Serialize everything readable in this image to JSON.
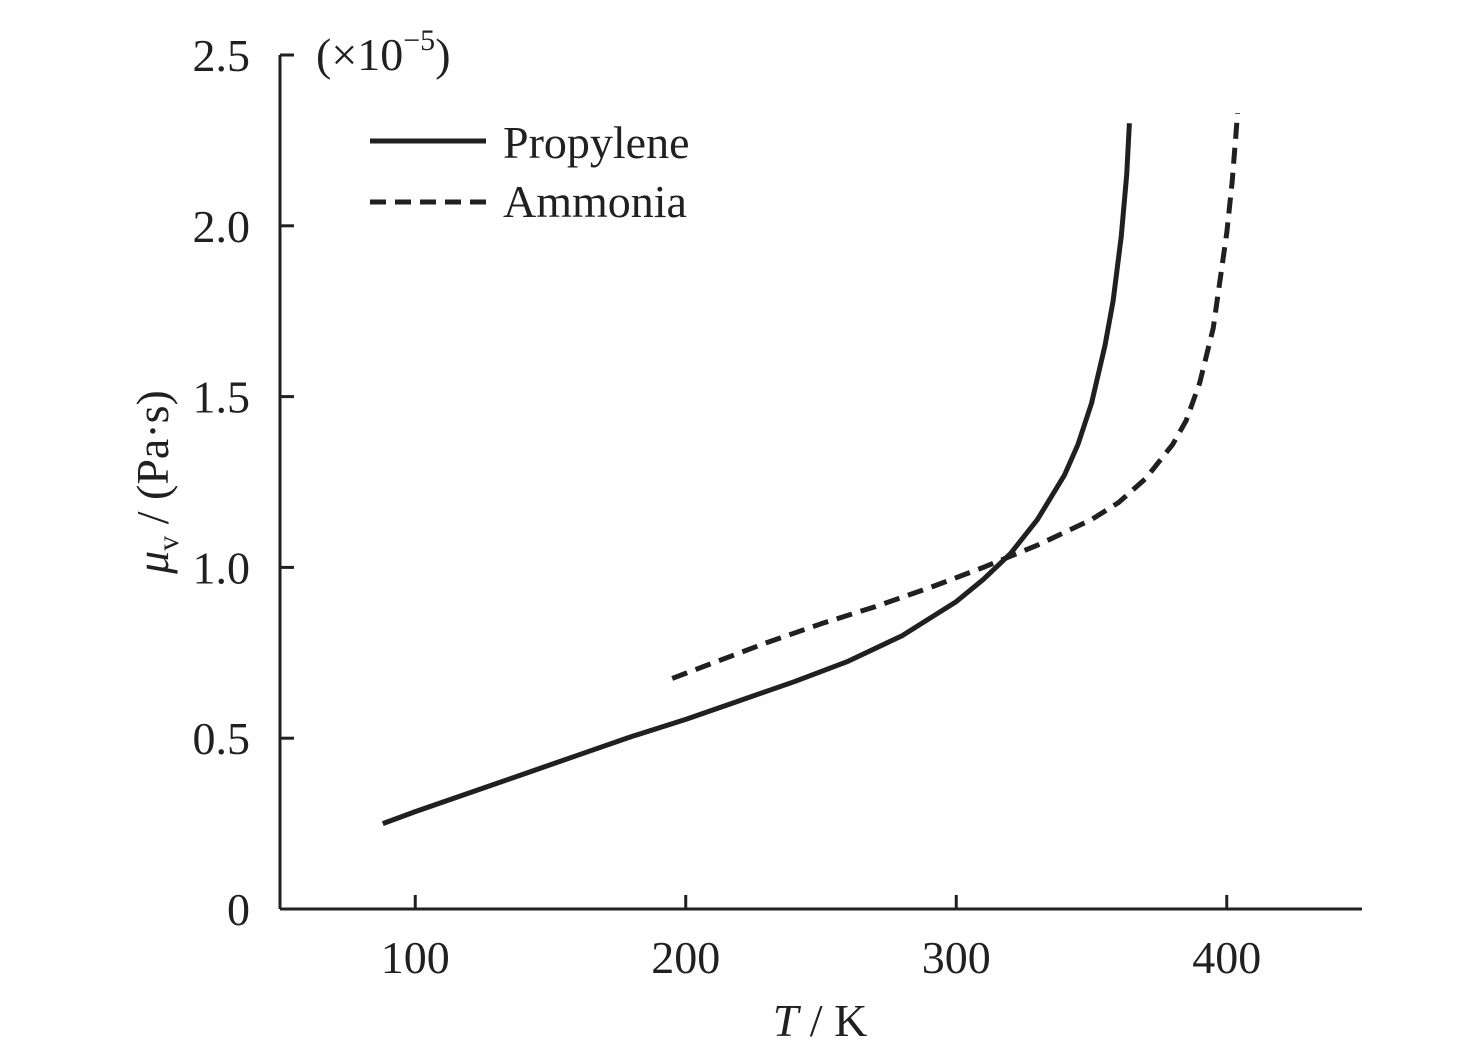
{
  "chart_data": {
    "type": "line",
    "x_axis": {
      "label_symbol": "T",
      "label_sep": " / ",
      "label_unit": "K",
      "range": [
        50,
        450
      ],
      "ticks": [
        100,
        200,
        300,
        400
      ],
      "tick_labels": [
        "100",
        "200",
        "300",
        "400"
      ]
    },
    "y_axis": {
      "label_symbol": "μ",
      "label_subscript": "v",
      "label_rest": " / (Pa·s)",
      "multiplier_prefix": "(×10",
      "multiplier_exponent": "−5",
      "multiplier_suffix": ")",
      "range": [
        0,
        2.5
      ],
      "ticks": [
        0,
        0.5,
        1.0,
        1.5,
        2.0,
        2.5
      ],
      "tick_labels": [
        "0",
        "0.5",
        "1.0",
        "1.5",
        "2.0",
        "2.5"
      ]
    },
    "grid": false,
    "legend_position": "top-left",
    "series": [
      {
        "name": "Propylene",
        "style": "solid",
        "color": "#231f20",
        "points": [
          [
            88,
            0.25
          ],
          [
            100,
            0.285
          ],
          [
            120,
            0.34
          ],
          [
            140,
            0.395
          ],
          [
            160,
            0.45
          ],
          [
            180,
            0.505
          ],
          [
            200,
            0.555
          ],
          [
            220,
            0.61
          ],
          [
            240,
            0.665
          ],
          [
            260,
            0.725
          ],
          [
            280,
            0.8
          ],
          [
            300,
            0.9
          ],
          [
            310,
            0.965
          ],
          [
            320,
            1.04
          ],
          [
            330,
            1.14
          ],
          [
            340,
            1.27
          ],
          [
            345,
            1.36
          ],
          [
            350,
            1.48
          ],
          [
            355,
            1.65
          ],
          [
            358,
            1.78
          ],
          [
            361,
            1.97
          ],
          [
            363,
            2.15
          ],
          [
            364,
            2.3
          ]
        ]
      },
      {
        "name": "Ammonia",
        "style": "dashed",
        "color": "#231f20",
        "points": [
          [
            195,
            0.675
          ],
          [
            210,
            0.72
          ],
          [
            230,
            0.78
          ],
          [
            250,
            0.835
          ],
          [
            270,
            0.885
          ],
          [
            290,
            0.94
          ],
          [
            310,
            1.0
          ],
          [
            330,
            1.065
          ],
          [
            350,
            1.14
          ],
          [
            360,
            1.19
          ],
          [
            370,
            1.26
          ],
          [
            380,
            1.36
          ],
          [
            385,
            1.43
          ],
          [
            390,
            1.54
          ],
          [
            395,
            1.7
          ],
          [
            400,
            1.98
          ],
          [
            402,
            2.13
          ],
          [
            404,
            2.33
          ]
        ]
      }
    ]
  }
}
